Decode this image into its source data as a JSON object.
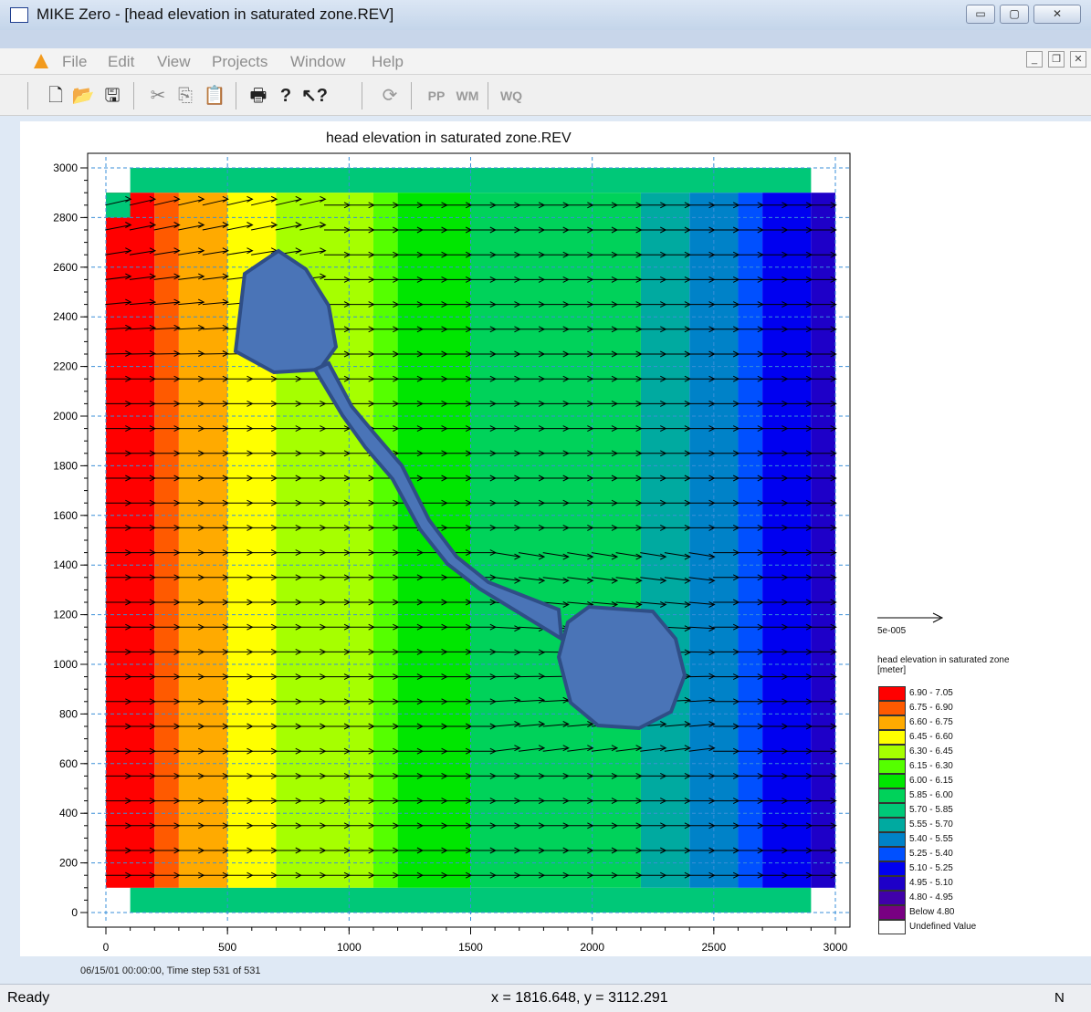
{
  "window": {
    "title": "MIKE Zero - [head elevation in saturated zone.REV]",
    "controls": {
      "minimize": "▭",
      "maximize": "▢",
      "close": "✕"
    }
  },
  "menu": {
    "items": [
      "File",
      "Edit",
      "View",
      "Projects",
      "Window",
      "Help"
    ],
    "mdi_controls": {
      "minimize": "_",
      "restore": "❐",
      "close": "✕"
    }
  },
  "toolbar": {
    "icons": [
      "new-icon",
      "open-icon",
      "save-icon",
      "cut-icon",
      "copy-icon",
      "paste-icon",
      "print-icon",
      "help-icon",
      "context-help-icon",
      "refresh-icon"
    ],
    "text_buttons": [
      "PP",
      "WM",
      "WQ"
    ]
  },
  "plot": {
    "title": "head elevation in saturated zone.REV",
    "timestamp": "06/15/01 00:00:00, Time step 531 of 531",
    "vector_scale_label": "5e-005",
    "legend_title": "head elevation in saturated zone [meter]",
    "legend": [
      {
        "label": "6.90 - 7.05",
        "color": "#ff0000"
      },
      {
        "label": "6.75 - 6.90",
        "color": "#ff5a00"
      },
      {
        "label": "6.60 - 6.75",
        "color": "#ffaa00"
      },
      {
        "label": "6.45 - 6.60",
        "color": "#ffff00"
      },
      {
        "label": "6.30 - 6.45",
        "color": "#a6ff00"
      },
      {
        "label": "6.15 - 6.30",
        "color": "#55ff00"
      },
      {
        "label": "6.00 - 6.15",
        "color": "#00e600"
      },
      {
        "label": "5.85 - 6.00",
        "color": "#00d25a"
      },
      {
        "label": "5.70 - 5.85",
        "color": "#00c878"
      },
      {
        "label": "5.55 - 5.70",
        "color": "#00aaa0"
      },
      {
        "label": "5.40 - 5.55",
        "color": "#0082c8"
      },
      {
        "label": "5.25 - 5.40",
        "color": "#0050ff"
      },
      {
        "label": "5.10 - 5.25",
        "color": "#0000f0"
      },
      {
        "label": "4.95 - 5.10",
        "color": "#1e00c8"
      },
      {
        "label": "4.80 - 4.95",
        "color": "#4000aa"
      },
      {
        "label": "Below 4.80",
        "color": "#780082"
      },
      {
        "label": "Undefined Value",
        "color": "#ffffff"
      }
    ]
  },
  "chart_data": {
    "type": "heatmap",
    "title": "head elevation in saturated zone.REV",
    "xlim": [
      0,
      3000
    ],
    "ylim": [
      0,
      3000
    ],
    "x_ticks": [
      0,
      500,
      1000,
      1500,
      2000,
      2500,
      3000
    ],
    "y_ticks": [
      0,
      200,
      400,
      600,
      800,
      1000,
      1200,
      1400,
      1600,
      1800,
      2000,
      2200,
      2400,
      2600,
      2800,
      3000
    ],
    "grid": true,
    "legend_placement": "right",
    "head_bands_by_x": [
      {
        "x0": 0,
        "x1": 200,
        "range": "6.90 - 7.05"
      },
      {
        "x0": 200,
        "x1": 300,
        "range": "6.75 - 6.90"
      },
      {
        "x0": 300,
        "x1": 500,
        "range": "6.60 - 6.75"
      },
      {
        "x0": 500,
        "x1": 700,
        "range": "6.45 - 6.60"
      },
      {
        "x0": 700,
        "x1": 1100,
        "range": "6.30 - 6.45"
      },
      {
        "x0": 1100,
        "x1": 1200,
        "range": "6.15 - 6.30"
      },
      {
        "x0": 1200,
        "x1": 1500,
        "range": "6.00 - 6.15"
      },
      {
        "x0": 1500,
        "x1": 2200,
        "range": "5.85 - 6.00"
      },
      {
        "x0": 2200,
        "x1": 2400,
        "range": "5.55 - 5.70"
      },
      {
        "x0": 2400,
        "x1": 2600,
        "range": "5.40 - 5.55"
      },
      {
        "x0": 2600,
        "x1": 2700,
        "range": "5.25 - 5.40"
      },
      {
        "x0": 2700,
        "x1": 2900,
        "range": "5.10 - 5.25"
      },
      {
        "x0": 2900,
        "x1": 3000,
        "range": "4.95 - 5.10"
      }
    ]
  },
  "status": {
    "left": "Ready",
    "coordinates": "x = 1816.648, y = 3112.291",
    "right": "N"
  }
}
